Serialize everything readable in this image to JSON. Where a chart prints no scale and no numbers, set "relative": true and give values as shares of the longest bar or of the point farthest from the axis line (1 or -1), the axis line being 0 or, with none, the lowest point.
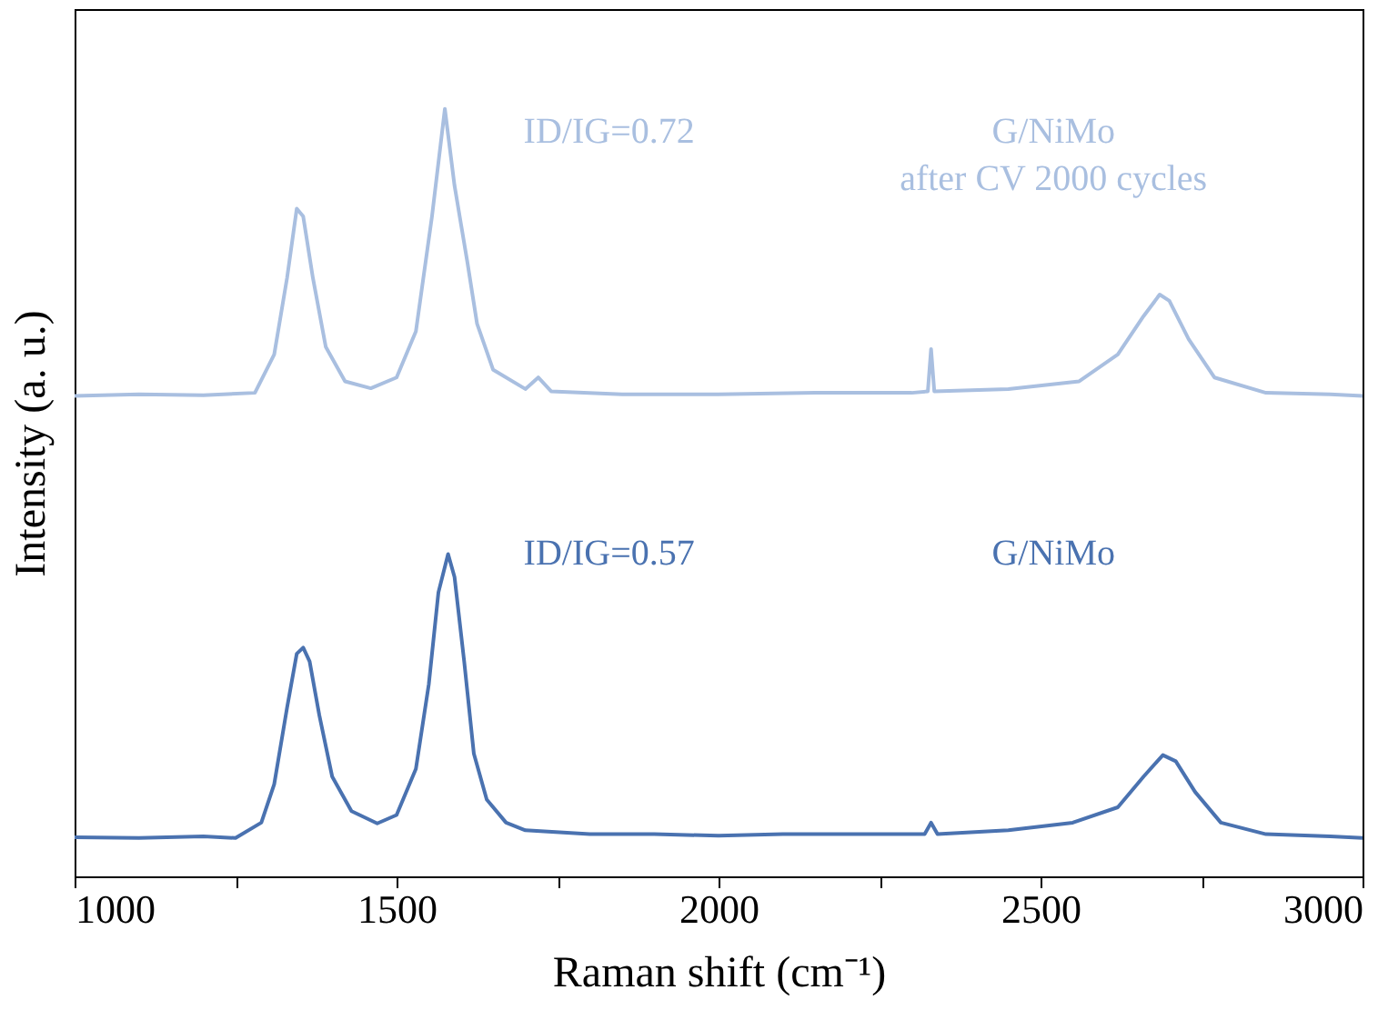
{
  "chart_data": {
    "type": "line",
    "relative": true,
    "xlabel": "Raman shift (cm⁻¹)",
    "ylabel": "Intensity (a. u.)",
    "xlim": [
      1000,
      3000
    ],
    "xticks": [
      1000,
      {
        "value": 1250,
        "label": null
      },
      1500,
      {
        "value": 1750,
        "label": null
      },
      2000,
      {
        "value": 2250,
        "label": null
      },
      2500,
      {
        "value": 2750,
        "label": null
      },
      3000
    ],
    "tick_labels": "x",
    "grid": false,
    "marker": "none",
    "line_style": "solid",
    "annotations": [
      "ID/IG=0.57",
      "ID/IG=0.72"
    ],
    "series": [
      {
        "name": "G/NiMo",
        "color": "#4a72b0",
        "x": [
          1000,
          1100,
          1200,
          1250,
          1290,
          1310,
          1330,
          1345,
          1355,
          1365,
          1380,
          1400,
          1430,
          1470,
          1500,
          1530,
          1550,
          1565,
          1580,
          1590,
          1605,
          1620,
          1640,
          1670,
          1700,
          1800,
          1900,
          2000,
          2100,
          2200,
          2320,
          2330,
          2340,
          2450,
          2550,
          2620,
          2660,
          2690,
          2710,
          2740,
          2780,
          2850,
          2950,
          3000
        ],
        "values": [
          0.051,
          0.05,
          0.052,
          0.05,
          0.07,
          0.12,
          0.22,
          0.29,
          0.298,
          0.28,
          0.21,
          0.13,
          0.085,
          0.069,
          0.08,
          0.14,
          0.25,
          0.37,
          0.42,
          0.39,
          0.28,
          0.16,
          0.1,
          0.07,
          0.06,
          0.055,
          0.055,
          0.053,
          0.055,
          0.055,
          0.055,
          0.07,
          0.055,
          0.06,
          0.07,
          0.09,
          0.13,
          0.158,
          0.15,
          0.11,
          0.07,
          0.055,
          0.052,
          0.05
        ]
      },
      {
        "name": "G/NiMo\nafter CV 2000 cycles",
        "color": "#a9bfe0",
        "x": [
          1000,
          1100,
          1200,
          1280,
          1310,
          1330,
          1345,
          1355,
          1370,
          1390,
          1420,
          1460,
          1500,
          1530,
          1555,
          1575,
          1590,
          1610,
          1625,
          1650,
          1700,
          1720,
          1740,
          1850,
          2000,
          2150,
          2300,
          2325,
          2330,
          2335,
          2450,
          2560,
          2620,
          2660,
          2685,
          2700,
          2730,
          2770,
          2850,
          2950,
          3000
        ],
        "values": [
          0.626,
          0.628,
          0.627,
          0.63,
          0.68,
          0.78,
          0.87,
          0.86,
          0.78,
          0.69,
          0.645,
          0.636,
          0.65,
          0.71,
          0.86,
          1.0,
          0.9,
          0.8,
          0.72,
          0.66,
          0.635,
          0.65,
          0.632,
          0.628,
          0.628,
          0.63,
          0.63,
          0.632,
          0.687,
          0.632,
          0.635,
          0.645,
          0.68,
          0.73,
          0.758,
          0.75,
          0.7,
          0.65,
          0.63,
          0.628,
          0.626
        ]
      }
    ]
  }
}
